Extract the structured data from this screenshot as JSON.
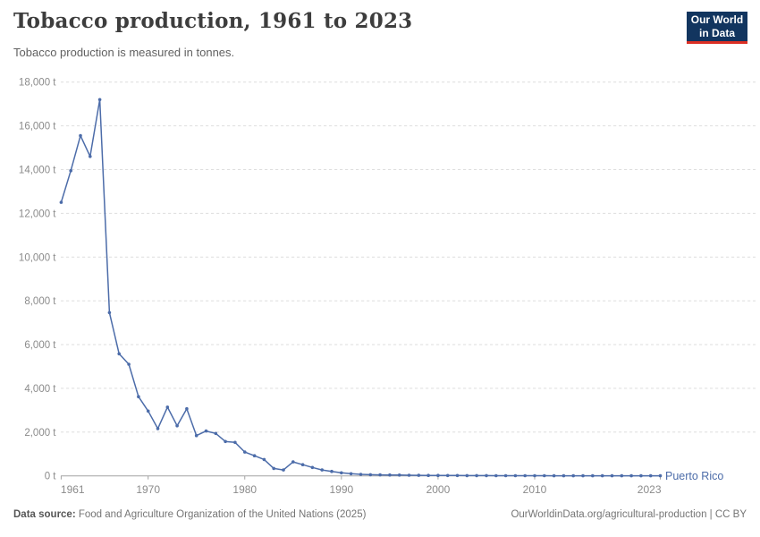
{
  "header": {
    "title": "Tobacco production, 1961 to 2023",
    "subtitle": "Tobacco production is measured in tonnes."
  },
  "logo": {
    "line1": "Our World",
    "line2": "in Data"
  },
  "chart_data": {
    "type": "line",
    "title": "Tobacco production, 1961 to 2023",
    "ylabel": "",
    "xlabel": "",
    "unit": " t",
    "entity": "Puerto Rico",
    "line_color": "#4C6CA9",
    "grid": "dashed",
    "legend_position": "end-of-line",
    "xlim": [
      1961,
      2023
    ],
    "ylim": [
      0,
      18000
    ],
    "xticks": [
      1961,
      1970,
      1980,
      1990,
      2000,
      2010,
      2023
    ],
    "yticks": [
      0,
      2000,
      4000,
      6000,
      8000,
      10000,
      12000,
      14000,
      16000,
      18000
    ],
    "x": [
      1961,
      1962,
      1963,
      1964,
      1965,
      1966,
      1967,
      1968,
      1969,
      1970,
      1971,
      1972,
      1973,
      1974,
      1975,
      1976,
      1977,
      1978,
      1979,
      1980,
      1981,
      1982,
      1983,
      1984,
      1985,
      1986,
      1987,
      1988,
      1989,
      1990,
      1991,
      1992,
      1993,
      1994,
      1995,
      1996,
      1997,
      1998,
      1999,
      2000,
      2001,
      2002,
      2003,
      2004,
      2005,
      2006,
      2007,
      2008,
      2009,
      2010,
      2011,
      2012,
      2013,
      2014,
      2015,
      2016,
      2017,
      2018,
      2019,
      2020,
      2021,
      2022,
      2023
    ],
    "series": [
      {
        "name": "Puerto Rico",
        "values": [
          12500,
          13950,
          15550,
          14600,
          17200,
          7460,
          5580,
          5100,
          3620,
          2960,
          2160,
          3140,
          2290,
          3070,
          1840,
          2050,
          1940,
          1570,
          1530,
          1090,
          920,
          750,
          340,
          270,
          640,
          510,
          385,
          270,
          205,
          140,
          100,
          70,
          55,
          45,
          40,
          35,
          30,
          25,
          22,
          20,
          18,
          15,
          14,
          12,
          11,
          10,
          9,
          8,
          8,
          7,
          7,
          6,
          6,
          5,
          5,
          5,
          4,
          4,
          4,
          3,
          3,
          3,
          3
        ]
      }
    ]
  },
  "footer": {
    "source_label": "Data source:",
    "source_text": " Food and Agriculture Organization of the United Nations (2025)",
    "credit_text": "OurWorldinData.org/agricultural-production | CC BY"
  },
  "colors": {
    "line": "#4C6CA9",
    "gridline": "#dedede",
    "axis": "#a3a3a3",
    "tick_label": "#8b8b8b",
    "entity_label": "#4C6CA9"
  }
}
